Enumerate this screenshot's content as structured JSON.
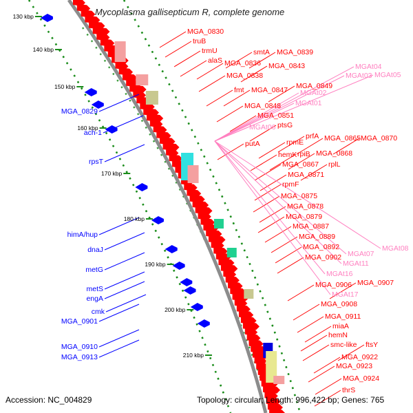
{
  "title": "Mycoplasma gallisepticum R, complete genome",
  "footer": {
    "accession": "Accession: NC_004829",
    "summary": "Topology: circular; Length: 996,422 bp; Genes: 765"
  },
  "colors": {
    "forward_gene": "#ff0000",
    "reverse_gene": "#0000ff",
    "forward_label": "#ff0000",
    "reverse_label": "#0000ff",
    "trna_label": "#ff80c0",
    "backbone": "#8c8c8c",
    "dots": "#1a8c1a"
  },
  "ticks": [
    "130 kbp",
    "140 kbp",
    "150 kbp",
    "160 kbp",
    "170 kbp",
    "180 kbp",
    "190 kbp",
    "200 kbp",
    "210 kbp"
  ],
  "reverse_labels": [
    "MGA_0829",
    "ach-1",
    "rpsT",
    "himA/hup",
    "dnaJ",
    "metG",
    "metS",
    "engA",
    "cmk",
    "MGA_0901",
    "MGA_0910",
    "MGA_0913"
  ],
  "forward_labels": [
    "MGA_0830",
    "truB",
    "trmU",
    "alaS",
    "smtA",
    "MGA_0839",
    "MGA_0836",
    "MGA_0843",
    "MGA_0838",
    "fmt",
    "MGA_0847",
    "MGA_0849",
    "MGA_0848",
    "MGA_0851",
    "ptsG",
    "putA",
    "rpmE",
    "prfA",
    "MGA_0865",
    "MGA_0870",
    "hemK",
    "rpiB",
    "MGA_0868",
    "MGA_0867",
    "rplL",
    "MGA_0871",
    "rpmF",
    "MGA_0875",
    "MGA_0878",
    "MGA_0879",
    "MGA_0887",
    "MGA_0889",
    "MGA_0892",
    "MGA_0902",
    "MGA_0906",
    "MGA_0907",
    "MGA_0908",
    "MGA_0911",
    "miaA",
    "hemN",
    "smc-like",
    "ftsY",
    "MGA_0922",
    "MGA_0923",
    "MGA_0924",
    "thrS"
  ],
  "trna_labels": [
    "MGAt05",
    "MGAt04",
    "MGAt03",
    "MGAt02",
    "MGAt01",
    "MGAt06",
    "MGAt07",
    "MGAt08",
    "MGAt11",
    "MGAt16",
    "MGAt17"
  ]
}
